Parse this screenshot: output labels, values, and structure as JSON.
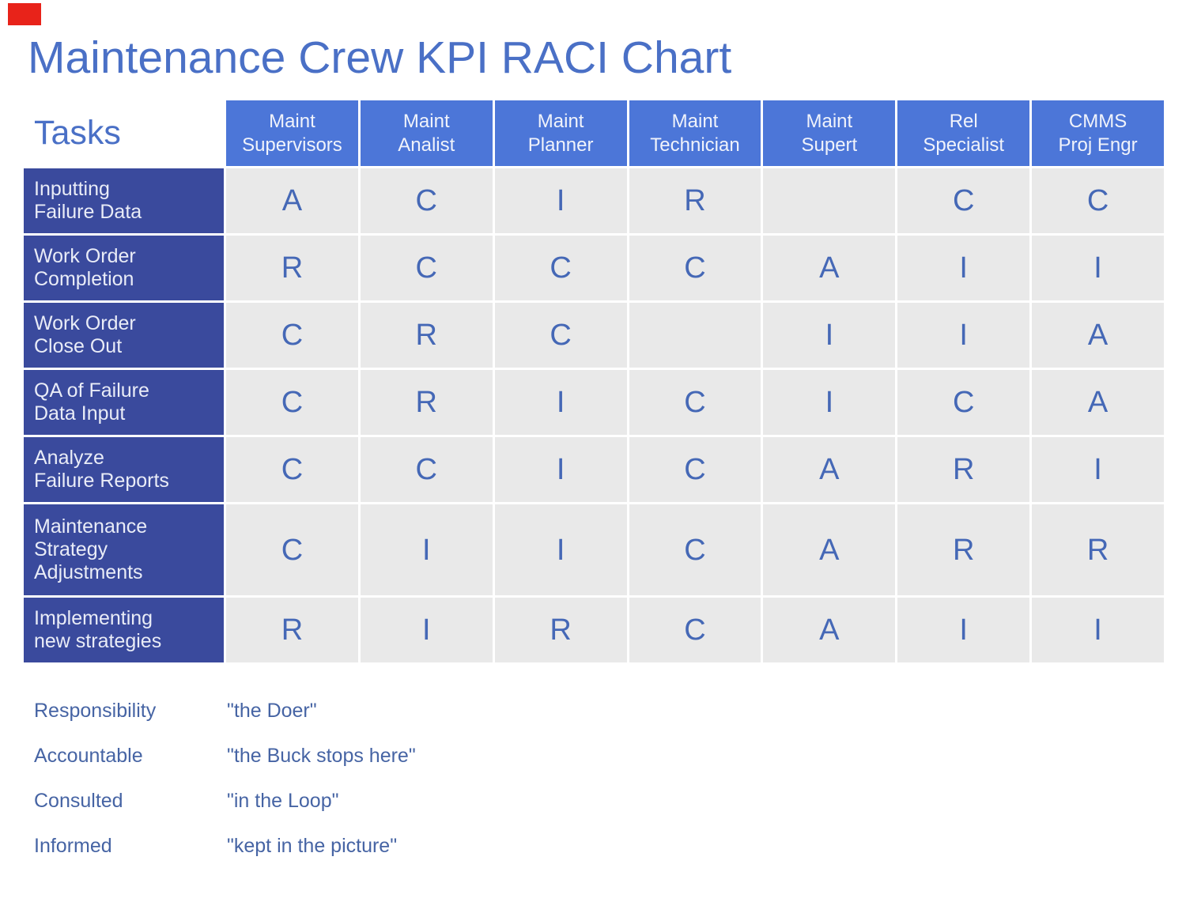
{
  "chart_data": {
    "type": "table",
    "title": "Maintenance Crew KPI RACI Chart",
    "corner_label": "Tasks",
    "columns": [
      "Maint\nSupervisors",
      "Maint\nAnalist",
      "Maint\nPlanner",
      "Maint\nTechnician",
      "Maint\nSupert",
      "Rel\nSpecialist",
      "CMMS\nProj Engr"
    ],
    "rows": [
      {
        "task": "Inputting\nFailure Data",
        "cells": [
          "A",
          "C",
          "I",
          "R",
          "",
          "C",
          "C"
        ]
      },
      {
        "task": "Work Order\nCompletion",
        "cells": [
          "R",
          "C",
          "C",
          "C",
          "A",
          "I",
          "I"
        ]
      },
      {
        "task": "Work Order\nClose Out",
        "cells": [
          "C",
          "R",
          "C",
          "",
          "I",
          "I",
          "A"
        ]
      },
      {
        "task": "QA of Failure\nData Input",
        "cells": [
          "C",
          "R",
          "I",
          "C",
          "I",
          "C",
          "A"
        ]
      },
      {
        "task": "Analyze\nFailure Reports",
        "cells": [
          "C",
          "C",
          "I",
          "C",
          "A",
          "R",
          "I"
        ]
      },
      {
        "task": "Maintenance\nStrategy\nAdjustments",
        "cells": [
          "C",
          "I",
          "I",
          "C",
          "A",
          "R",
          "R"
        ]
      },
      {
        "task": "Implementing\nnew strategies",
        "cells": [
          "R",
          "I",
          "R",
          "C",
          "A",
          "I",
          "I"
        ]
      }
    ],
    "raci_codes": {
      "R": "Responsibility",
      "A": "Accountable",
      "C": "Consulted",
      "I": "Informed"
    },
    "legend": [
      {
        "term": "Responsibility",
        "definition": "\"the Doer\""
      },
      {
        "term": "Accountable",
        "definition": "\"the Buck stops here\""
      },
      {
        "term": "Consulted",
        "definition": "\"in the Loop\""
      },
      {
        "term": "Informed",
        "definition": "\"kept in the picture\""
      }
    ],
    "layout_hints": {
      "grid": "white gaps between all cells",
      "legend_position": "below table, bottom-left"
    }
  },
  "colors": {
    "title_text": "#4a70c6",
    "column_header_bg": "#4c76d8",
    "column_header_text": "#f0f3fb",
    "task_header_bg": "#3a4a9d",
    "task_header_text": "#e9ecf7",
    "cell_bg": "#e9e9e9",
    "cell_text": "#4568b6",
    "legend_text": "#4664a4",
    "corner_mark": "#e8231a"
  }
}
